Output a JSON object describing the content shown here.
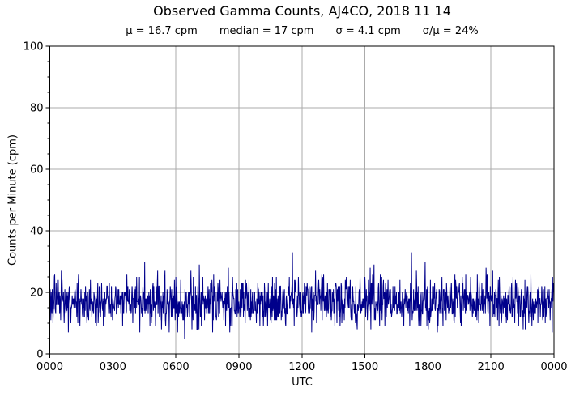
{
  "figure": {
    "background": "#ffffff",
    "text_color": "#000000"
  },
  "chart_data": {
    "type": "line",
    "title": "Observed Gamma Counts, AJ4CO, 2018 11 14",
    "stats": [
      "μ = 16.7 cpm",
      "median = 17 cpm",
      "σ = 4.1 cpm",
      "σ/μ = 24%"
    ],
    "xlabel": "UTC",
    "ylabel": "Counts per Minute (cpm)",
    "x_ticks": [
      "0000",
      "0300",
      "0600",
      "0900",
      "1200",
      "1500",
      "1800",
      "2100",
      "0000"
    ],
    "x_tick_minutes": [
      0,
      180,
      360,
      540,
      720,
      900,
      1080,
      1260,
      1440
    ],
    "xlim_minutes": [
      0,
      1440
    ],
    "y_ticks": [
      0,
      20,
      40,
      60,
      80,
      100
    ],
    "y_minor_step": 5,
    "ylim": [
      0,
      100
    ],
    "grid": true,
    "legend": "none",
    "line_color": "#00008b",
    "grid_color": "#ababab",
    "frame_color": "#000000",
    "series": [
      {
        "name": "Observed gamma counts",
        "points_per_day": 1440,
        "distribution": "poisson",
        "mean_cpm": 16.7,
        "median_cpm": 17,
        "sigma_cpm": 4.1,
        "sigma_over_mean_pct": 24,
        "observed_min_cpm": 5,
        "observed_max_cpm": 33,
        "peak": {
          "minute": 693,
          "value_cpm": 33
        }
      }
    ]
  }
}
